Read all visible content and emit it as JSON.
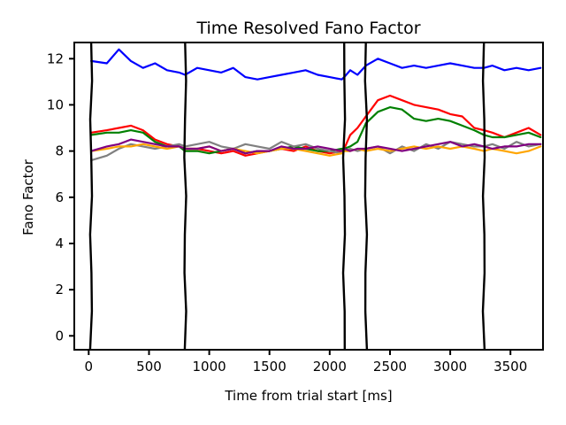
{
  "chart_data": {
    "type": "line",
    "title": "Time Resolved Fano Factor",
    "xlabel": "Time from trial start [ms]",
    "ylabel": "Fano Factor",
    "xlim": [
      -120,
      3770
    ],
    "ylim": [
      -0.6,
      12.7
    ],
    "xticks": [
      0,
      500,
      1000,
      1500,
      2000,
      2500,
      3000,
      3500
    ],
    "yticks": [
      0,
      2,
      4,
      6,
      8,
      10,
      12
    ],
    "grid": false,
    "legend": "none",
    "event_lines_x": [
      20,
      800,
      2120,
      2300,
      3280
    ],
    "segments": [
      [
        20,
        800
      ],
      [
        800,
        2120
      ],
      [
        2120,
        2300
      ],
      [
        2300,
        3280
      ],
      [
        3280,
        3750
      ]
    ],
    "series": [
      {
        "color": "#0000ff",
        "x": [
          20,
          150,
          250,
          350,
          450,
          550,
          650,
          750,
          800,
          900,
          1000,
          1100,
          1200,
          1300,
          1400,
          1500,
          1600,
          1700,
          1800,
          1900,
          2000,
          2100,
          2120,
          2170,
          2230,
          2300,
          2400,
          2500,
          2600,
          2700,
          2800,
          2900,
          3000,
          3100,
          3200,
          3280,
          3350,
          3450,
          3550,
          3650,
          3750
        ],
        "y": [
          11.9,
          11.8,
          12.4,
          11.9,
          11.6,
          11.8,
          11.5,
          11.4,
          11.3,
          11.6,
          11.5,
          11.4,
          11.6,
          11.2,
          11.1,
          11.2,
          11.3,
          11.4,
          11.5,
          11.3,
          11.2,
          11.1,
          11.2,
          11.5,
          11.3,
          11.7,
          12.0,
          11.8,
          11.6,
          11.7,
          11.6,
          11.7,
          11.8,
          11.7,
          11.6,
          11.6,
          11.7,
          11.5,
          11.6,
          11.5,
          11.6
        ]
      },
      {
        "color": "#ff0000",
        "x": [
          20,
          150,
          250,
          350,
          450,
          550,
          650,
          750,
          800,
          900,
          1000,
          1100,
          1200,
          1300,
          1400,
          1500,
          1600,
          1700,
          1800,
          1900,
          2000,
          2100,
          2120,
          2170,
          2230,
          2300,
          2400,
          2500,
          2600,
          2700,
          2800,
          2900,
          3000,
          3100,
          3200,
          3280,
          3350,
          3450,
          3550,
          3650,
          3750
        ],
        "y": [
          8.8,
          8.9,
          9.0,
          9.1,
          8.9,
          8.5,
          8.3,
          8.2,
          8.1,
          8.1,
          8.0,
          7.9,
          8.0,
          7.8,
          7.9,
          8.0,
          8.1,
          8.0,
          8.2,
          8.0,
          7.9,
          8.0,
          8.1,
          8.7,
          9.0,
          9.5,
          10.2,
          10.4,
          10.2,
          10.0,
          9.9,
          9.8,
          9.6,
          9.5,
          9.0,
          8.9,
          8.8,
          8.6,
          8.8,
          9.0,
          8.7
        ]
      },
      {
        "color": "#008000",
        "x": [
          20,
          150,
          250,
          350,
          450,
          550,
          650,
          750,
          800,
          900,
          1000,
          1100,
          1200,
          1300,
          1400,
          1500,
          1600,
          1700,
          1800,
          1900,
          2000,
          2100,
          2120,
          2170,
          2230,
          2300,
          2400,
          2500,
          2600,
          2700,
          2800,
          2900,
          3000,
          3100,
          3200,
          3280,
          3350,
          3450,
          3550,
          3650,
          3750
        ],
        "y": [
          8.7,
          8.8,
          8.8,
          8.9,
          8.8,
          8.4,
          8.2,
          8.2,
          8.0,
          8.0,
          7.9,
          8.0,
          8.1,
          7.9,
          8.0,
          8.0,
          8.1,
          8.2,
          8.1,
          8.0,
          8.0,
          8.1,
          8.1,
          8.2,
          8.4,
          9.2,
          9.7,
          9.9,
          9.8,
          9.4,
          9.3,
          9.4,
          9.3,
          9.1,
          8.9,
          8.7,
          8.6,
          8.6,
          8.7,
          8.8,
          8.6
        ]
      },
      {
        "color": "#808080",
        "x": [
          20,
          150,
          250,
          350,
          450,
          550,
          650,
          750,
          800,
          900,
          1000,
          1100,
          1200,
          1300,
          1400,
          1500,
          1600,
          1700,
          1800,
          1900,
          2000,
          2100,
          2120,
          2170,
          2230,
          2300,
          2400,
          2500,
          2600,
          2700,
          2800,
          2900,
          3000,
          3100,
          3200,
          3280,
          3350,
          3450,
          3550,
          3650,
          3750
        ],
        "y": [
          7.6,
          7.8,
          8.1,
          8.3,
          8.2,
          8.1,
          8.2,
          8.3,
          8.2,
          8.3,
          8.4,
          8.2,
          8.1,
          8.3,
          8.2,
          8.1,
          8.4,
          8.2,
          8.3,
          8.1,
          8.0,
          7.9,
          8.0,
          8.1,
          8.0,
          8.1,
          8.2,
          7.9,
          8.2,
          8.0,
          8.3,
          8.1,
          8.4,
          8.3,
          8.2,
          8.2,
          8.3,
          8.1,
          8.4,
          8.2,
          8.3
        ]
      },
      {
        "color": "#ffa500",
        "x": [
          20,
          150,
          250,
          350,
          450,
          550,
          650,
          750,
          800,
          900,
          1000,
          1100,
          1200,
          1300,
          1400,
          1500,
          1600,
          1700,
          1800,
          1900,
          2000,
          2100,
          2120,
          2170,
          2230,
          2300,
          2400,
          2500,
          2600,
          2700,
          2800,
          2900,
          3000,
          3100,
          3200,
          3280,
          3350,
          3450,
          3550,
          3650,
          3750
        ],
        "y": [
          8.0,
          8.1,
          8.2,
          8.2,
          8.3,
          8.2,
          8.1,
          8.2,
          8.1,
          8.1,
          8.2,
          8.0,
          8.1,
          8.0,
          7.9,
          8.0,
          8.1,
          8.1,
          8.0,
          7.9,
          7.8,
          7.9,
          8.0,
          8.0,
          8.1,
          8.0,
          8.1,
          8.0,
          8.1,
          8.2,
          8.1,
          8.2,
          8.1,
          8.2,
          8.1,
          8.0,
          8.1,
          8.0,
          7.9,
          8.0,
          8.2
        ]
      },
      {
        "color": "#800080",
        "x": [
          20,
          150,
          250,
          350,
          450,
          550,
          650,
          750,
          800,
          900,
          1000,
          1100,
          1200,
          1300,
          1400,
          1500,
          1600,
          1700,
          1800,
          1900,
          2000,
          2100,
          2120,
          2170,
          2230,
          2300,
          2400,
          2500,
          2600,
          2700,
          2800,
          2900,
          3000,
          3100,
          3200,
          3280,
          3350,
          3450,
          3550,
          3650,
          3750
        ],
        "y": [
          8.0,
          8.2,
          8.3,
          8.5,
          8.4,
          8.3,
          8.2,
          8.2,
          8.1,
          8.1,
          8.2,
          8.0,
          8.1,
          7.9,
          8.0,
          8.0,
          8.2,
          8.1,
          8.1,
          8.2,
          8.1,
          8.0,
          8.1,
          8.0,
          8.1,
          8.1,
          8.2,
          8.1,
          8.0,
          8.1,
          8.2,
          8.3,
          8.4,
          8.2,
          8.3,
          8.2,
          8.1,
          8.2,
          8.2,
          8.3,
          8.3
        ]
      }
    ]
  }
}
